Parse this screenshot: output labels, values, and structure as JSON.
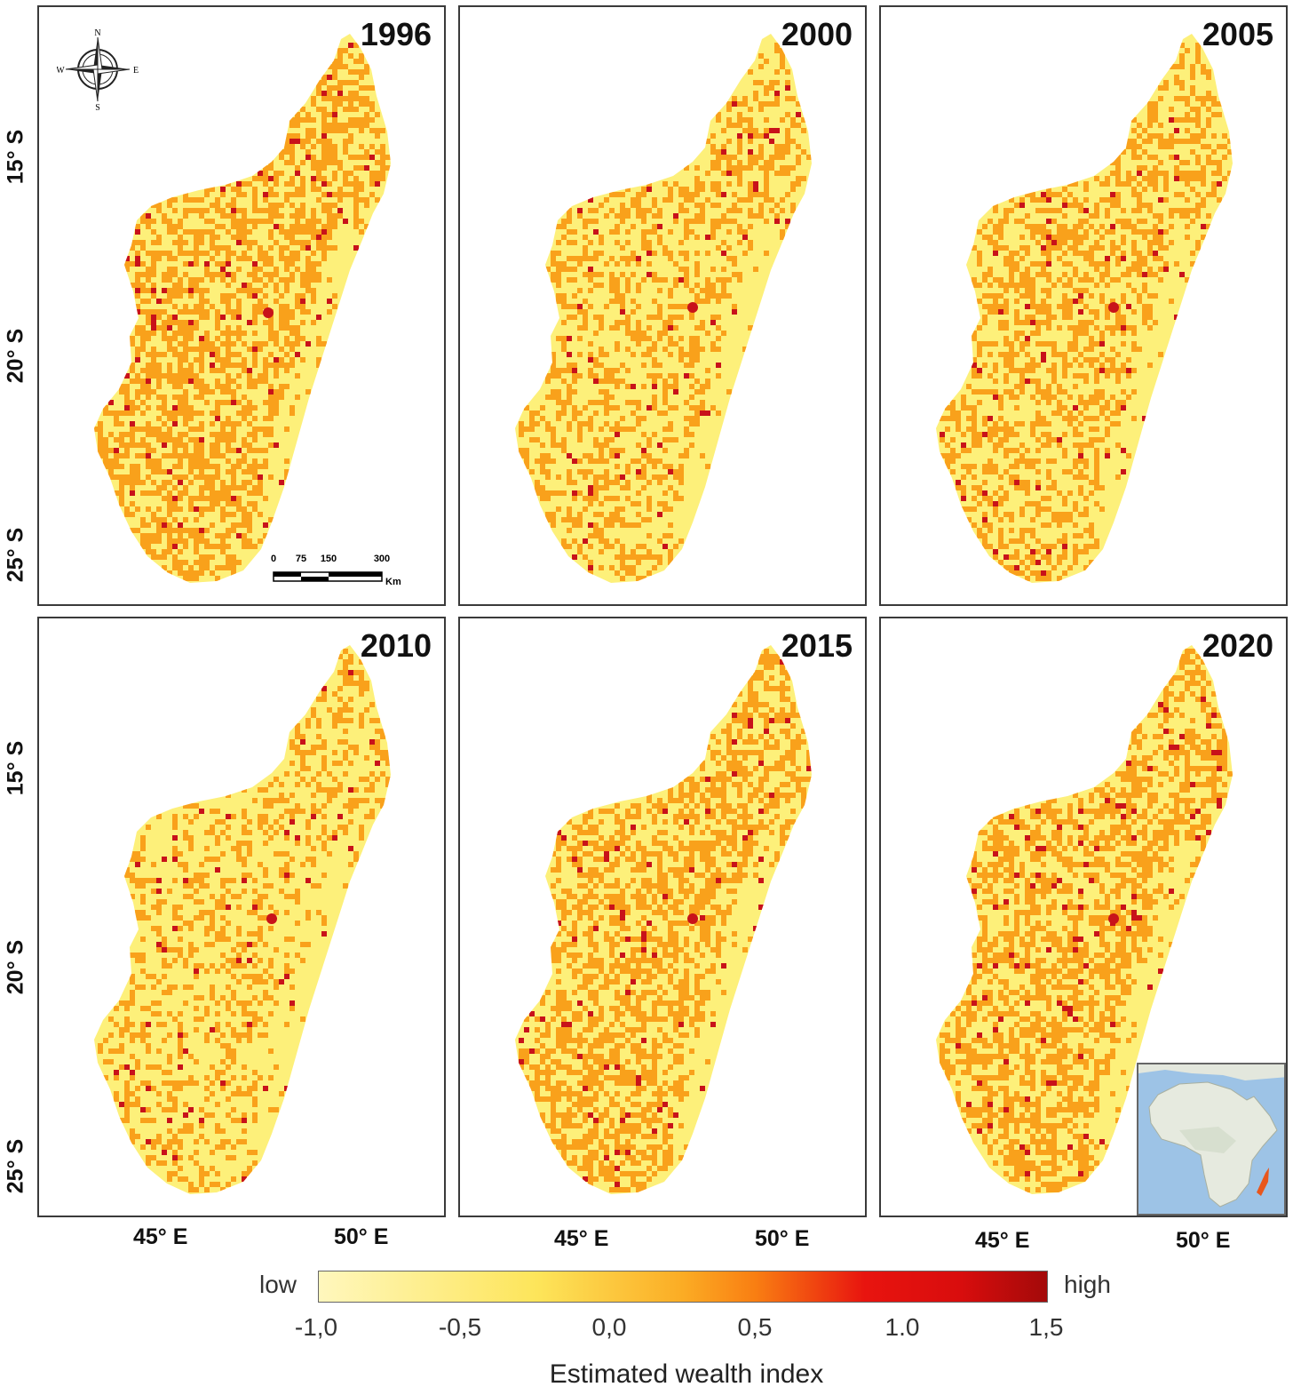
{
  "panels": [
    {
      "year": "1996",
      "orange": 0.52,
      "red": 0.03
    },
    {
      "year": "2000",
      "orange": 0.36,
      "red": 0.025
    },
    {
      "year": "2005",
      "orange": 0.42,
      "red": 0.025
    },
    {
      "year": "2010",
      "orange": 0.3,
      "red": 0.02
    },
    {
      "year": "2015",
      "orange": 0.5,
      "red": 0.03
    },
    {
      "year": "2020",
      "orange": 0.48,
      "red": 0.035
    }
  ],
  "latitude_labels": [
    "15° S",
    "20° S",
    "25° S"
  ],
  "longitude_labels": [
    "45° E",
    "50° E"
  ],
  "compass": {
    "n": "N",
    "s": "S",
    "e": "E",
    "w": "W"
  },
  "scale_bar": {
    "ticks": [
      "0",
      "75",
      "150",
      "300"
    ],
    "unit": "Km"
  },
  "legend": {
    "low_label": "low",
    "high_label": "high",
    "ticks": [
      "-1,0",
      "-0,5",
      "0,0",
      "0,5",
      "1.0",
      "1,5"
    ],
    "range": [
      -1.0,
      1.5
    ],
    "title": "Estimated wealth index",
    "colors": [
      "#fff7bd",
      "#fde55a",
      "#fbac24",
      "#f97e12",
      "#e8140f",
      "#a30a0a"
    ]
  },
  "colors": {
    "low": "#fdf07a",
    "mid": "#f9a11b",
    "high": "#c8121a",
    "sea": "#9dc3e6",
    "land_inset": "#e6eadf"
  }
}
